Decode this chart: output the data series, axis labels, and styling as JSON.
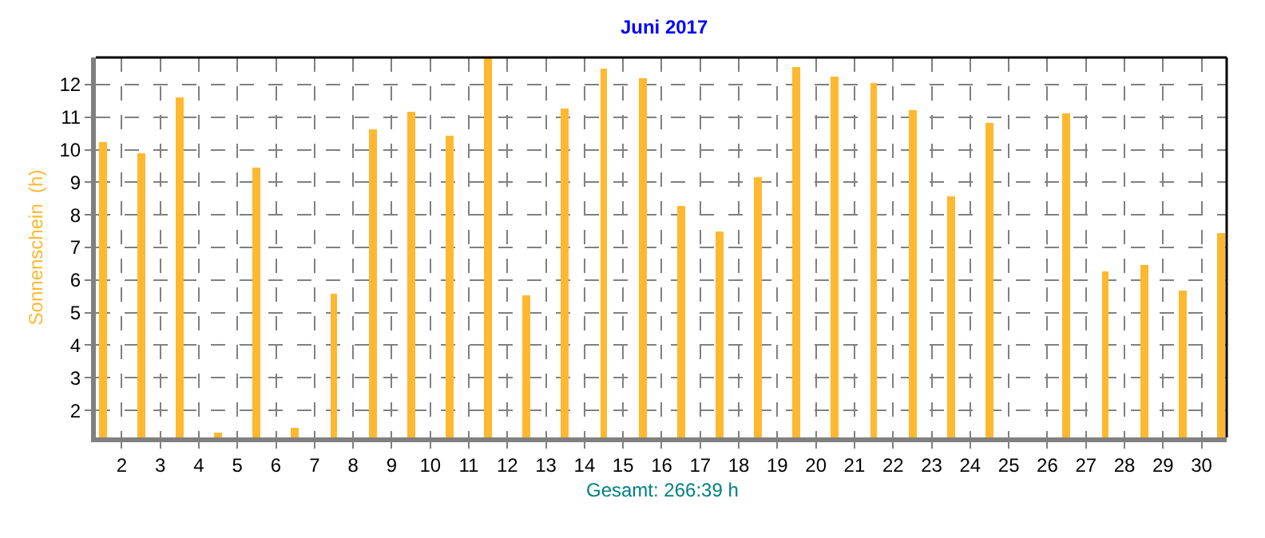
{
  "chart_data": {
    "type": "bar",
    "title": "Juni 2017",
    "ylabel": "Sonnenschein  (h)",
    "annotations": [
      "Gesamt: 266:39 h"
    ],
    "x": [
      1,
      2,
      3,
      4,
      5,
      6,
      7,
      8,
      9,
      10,
      11,
      12,
      13,
      14,
      15,
      16,
      17,
      18,
      19,
      20,
      21,
      22,
      23,
      24,
      25,
      26,
      27,
      28,
      29,
      30
    ],
    "values": [
      10.25,
      9.91,
      11.62,
      1.33,
      9.47,
      1.48,
      5.59,
      10.64,
      11.18,
      10.45,
      12.83,
      5.55,
      11.28,
      12.51,
      12.21,
      8.29,
      7.51,
      9.17,
      12.56,
      12.26,
      12.07,
      11.23,
      8.58,
      10.84,
      null,
      11.13,
      6.28,
      6.48,
      5.69,
      7.46
    ],
    "color": "#ffb82f",
    "xlim": [
      0.83,
      30.15
    ],
    "xticks": [
      {
        "value": 1.5,
        "label": "2"
      },
      {
        "value": 2.5,
        "label": "3"
      },
      {
        "value": 3.5,
        "label": "4"
      },
      {
        "value": 4.5,
        "label": "5"
      },
      {
        "value": 5.5,
        "label": "6"
      },
      {
        "value": 6.5,
        "label": "7"
      },
      {
        "value": 7.5,
        "label": "8"
      },
      {
        "value": 8.5,
        "label": "9"
      },
      {
        "value": 9.5,
        "label": "10"
      },
      {
        "value": 10.5,
        "label": "11"
      },
      {
        "value": 11.5,
        "label": "12"
      },
      {
        "value": 12.5,
        "label": "13"
      },
      {
        "value": 13.5,
        "label": "14"
      },
      {
        "value": 14.5,
        "label": "15"
      },
      {
        "value": 15.5,
        "label": "16"
      },
      {
        "value": 16.5,
        "label": "17"
      },
      {
        "value": 17.5,
        "label": "18"
      },
      {
        "value": 18.5,
        "label": "19"
      },
      {
        "value": 19.5,
        "label": "20"
      },
      {
        "value": 20.5,
        "label": "21"
      },
      {
        "value": 21.5,
        "label": "22"
      },
      {
        "value": 22.5,
        "label": "23"
      },
      {
        "value": 23.5,
        "label": "24"
      },
      {
        "value": 24.5,
        "label": "25"
      },
      {
        "value": 25.5,
        "label": "26"
      },
      {
        "value": 26.5,
        "label": "27"
      },
      {
        "value": 27.5,
        "label": "28"
      },
      {
        "value": 28.5,
        "label": "29"
      },
      {
        "value": 29.5,
        "label": "30"
      }
    ],
    "ylim": [
      1.17,
      12.83
    ],
    "yticks": [
      2,
      3,
      4,
      5,
      6,
      7,
      8,
      9,
      10,
      11,
      12
    ],
    "grid": true
  }
}
